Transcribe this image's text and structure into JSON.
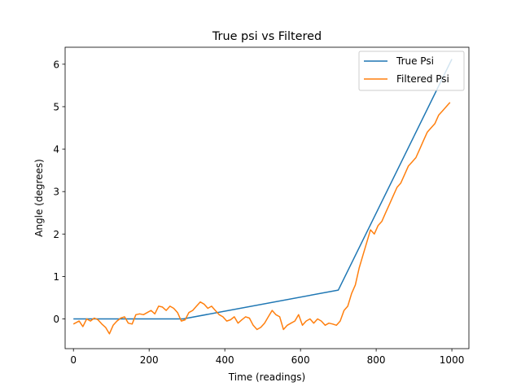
{
  "chart_data": {
    "type": "line",
    "title": "True psi vs Filtered",
    "xlabel": "Time (readings)",
    "ylabel": "Angle (degrees)",
    "xlim": [
      -22,
      1045
    ],
    "ylim": [
      -0.7,
      6.4
    ],
    "xticks": [
      0,
      200,
      400,
      600,
      800,
      1000
    ],
    "yticks": [
      0,
      1,
      2,
      3,
      4,
      5,
      6
    ],
    "grid": false,
    "legend_position": "upper right",
    "series": [
      {
        "name": "True Psi",
        "color": "#1f77b4",
        "x": [
          0,
          290,
          700,
          1000
        ],
        "y": [
          0.0,
          0.0,
          0.68,
          6.12
        ]
      },
      {
        "name": "Filtered Psi",
        "color": "#ff7f0e",
        "x": [
          0,
          15,
          25,
          35,
          45,
          55,
          65,
          75,
          85,
          95,
          105,
          115,
          125,
          135,
          145,
          155,
          165,
          175,
          185,
          195,
          205,
          215,
          225,
          235,
          245,
          255,
          265,
          275,
          285,
          295,
          305,
          315,
          325,
          335,
          345,
          355,
          365,
          375,
          385,
          395,
          405,
          415,
          425,
          435,
          445,
          455,
          465,
          475,
          485,
          495,
          505,
          515,
          525,
          535,
          545,
          555,
          565,
          575,
          585,
          595,
          605,
          615,
          625,
          635,
          645,
          655,
          665,
          675,
          685,
          695,
          705,
          715,
          725,
          735,
          745,
          755,
          765,
          775,
          785,
          795,
          805,
          815,
          825,
          835,
          845,
          855,
          865,
          875,
          885,
          895,
          905,
          915,
          925,
          935,
          945,
          955,
          965,
          975,
          985,
          995
        ],
        "y": [
          -0.12,
          -0.05,
          -0.18,
          0.0,
          -0.05,
          0.02,
          -0.02,
          -0.12,
          -0.2,
          -0.35,
          -0.15,
          -0.05,
          0.02,
          0.05,
          -0.1,
          -0.12,
          0.1,
          0.12,
          0.1,
          0.15,
          0.2,
          0.12,
          0.3,
          0.28,
          0.2,
          0.3,
          0.25,
          0.15,
          -0.05,
          -0.02,
          0.15,
          0.2,
          0.3,
          0.4,
          0.35,
          0.25,
          0.3,
          0.2,
          0.1,
          0.05,
          -0.05,
          -0.02,
          0.05,
          -0.1,
          -0.02,
          0.05,
          0.02,
          -0.15,
          -0.25,
          -0.2,
          -0.1,
          0.05,
          0.2,
          0.1,
          0.05,
          -0.25,
          -0.15,
          -0.1,
          -0.05,
          0.1,
          -0.15,
          -0.05,
          0.0,
          -0.1,
          0.0,
          -0.05,
          -0.15,
          -0.1,
          -0.12,
          -0.15,
          -0.05,
          0.2,
          0.3,
          0.6,
          0.8,
          1.2,
          1.5,
          1.8,
          2.1,
          2.0,
          2.2,
          2.3,
          2.5,
          2.7,
          2.9,
          3.1,
          3.2,
          3.4,
          3.6,
          3.7,
          3.8,
          4.0,
          4.2,
          4.4,
          4.5,
          4.6,
          4.8,
          4.9,
          5.0,
          5.1
        ]
      }
    ]
  }
}
